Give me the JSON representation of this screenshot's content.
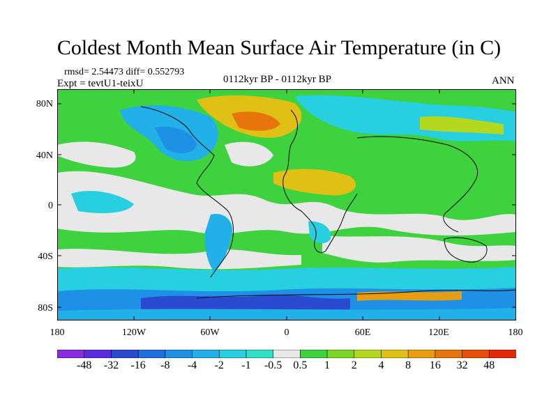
{
  "title": "Coldest Month Mean Surface Air Temperature (in C)",
  "stats": {
    "rmsd_line": "rmsd= 2.54473 diff= 0.552793",
    "expt_line": "Expt = tevtU1-teixU",
    "period": "0112kyr BP - 0112kyr BP",
    "season": "ANN"
  },
  "axes": {
    "lat_labels": [
      "80N",
      "40N",
      "0",
      "40S",
      "80S"
    ],
    "lon_labels": [
      "180",
      "120W",
      "60W",
      "0",
      "60E",
      "120E",
      "180"
    ]
  },
  "colorbar": {
    "labels": [
      "-48",
      "-32",
      "-16",
      "-8",
      "-4",
      "-2",
      "-1",
      "-0.5",
      "0.5",
      "1",
      "2",
      "4",
      "8",
      "16",
      "32",
      "48"
    ],
    "colors": [
      "#8a2be2",
      "#5b2be2",
      "#2a4bd0",
      "#1f6fe0",
      "#1e90e6",
      "#21b0e8",
      "#27cfe0",
      "#2fe0c8",
      "#e8e8e8",
      "#3fd23f",
      "#7cd628",
      "#b4d81e",
      "#e0c014",
      "#e89c10",
      "#e8740c",
      "#e64e0a",
      "#e02a08"
    ]
  }
}
